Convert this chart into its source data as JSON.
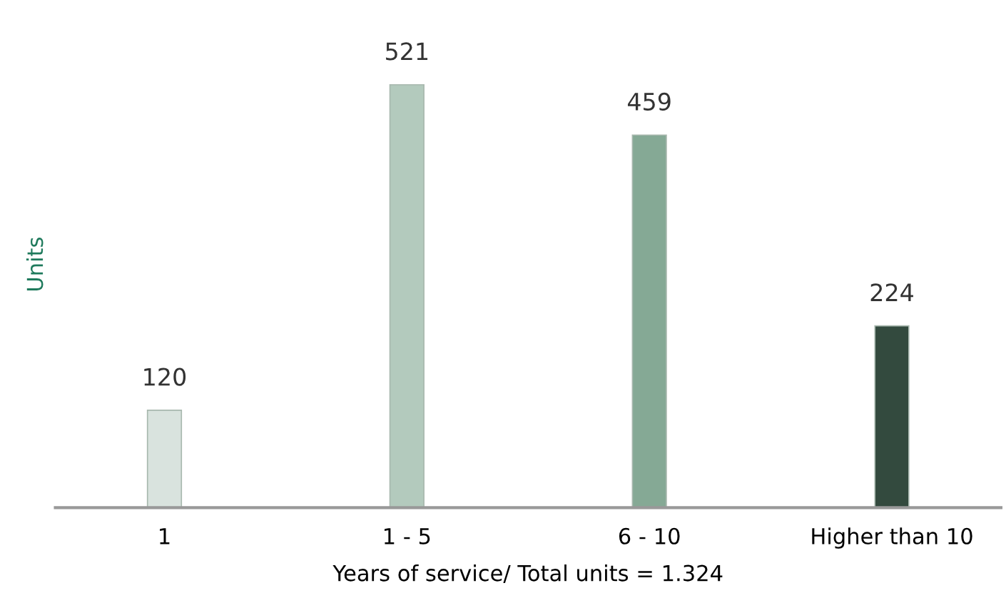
{
  "chart_data": {
    "type": "bar",
    "xlabel": "Years of service/ Total units = 1.324",
    "ylabel": "Units",
    "categories": [
      "1",
      "1 - 5",
      "6 - 10",
      "Higher than 10"
    ],
    "values": [
      120,
      521,
      459,
      224
    ],
    "colors": [
      "#d9e3de",
      "#b3cabd",
      "#85a995",
      "#334a3e"
    ],
    "data_labels": true,
    "grid": false,
    "legend": false
  }
}
